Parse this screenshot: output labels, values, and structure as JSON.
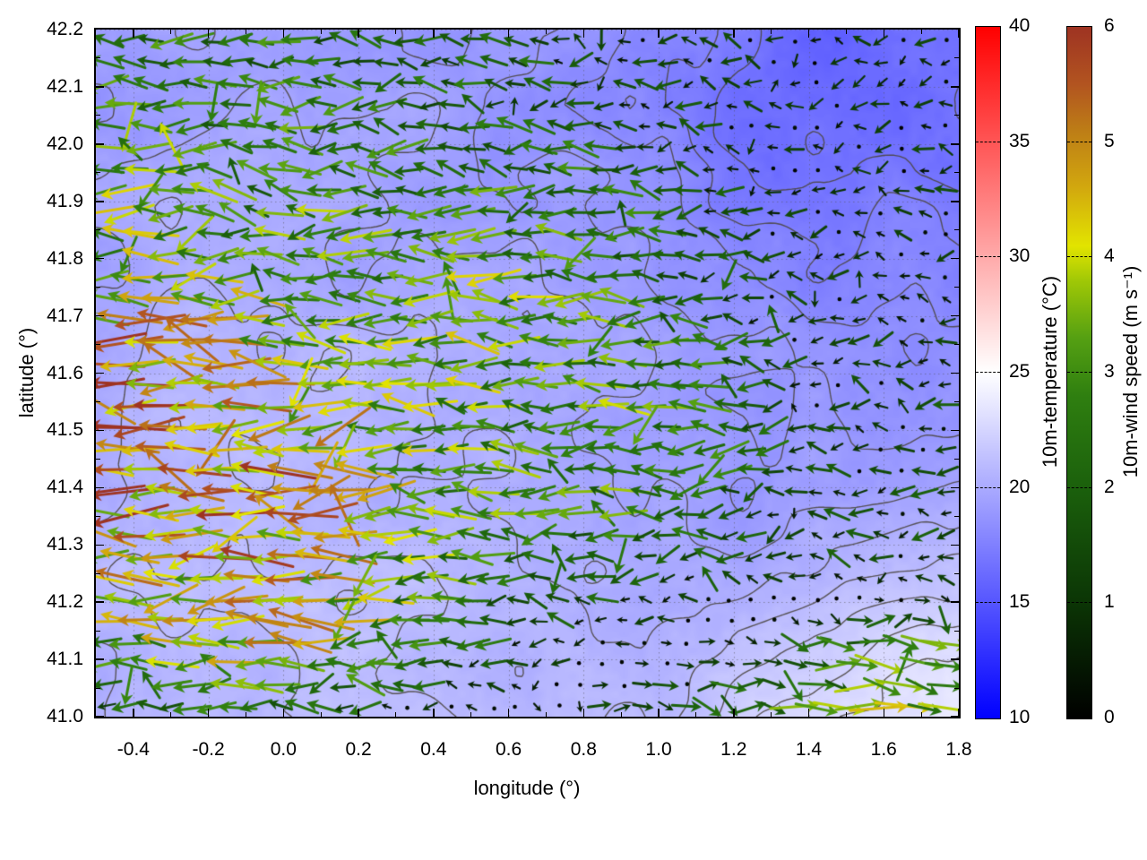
{
  "chart_data": {
    "type": "heatmap+vector-field",
    "title": "",
    "x_axis": {
      "label": "longitude (°)",
      "min": -0.5,
      "max": 1.8,
      "major_ticks": [
        -0.4,
        -0.2,
        0.0,
        0.2,
        0.4,
        0.6,
        0.8,
        1.0,
        1.2,
        1.4,
        1.6,
        1.8
      ],
      "tick_labels": [
        "-0.4",
        "-0.2",
        "0.0",
        "0.2",
        "0.4",
        "0.6",
        "0.8",
        "1.0",
        "1.2",
        "1.4",
        "1.6",
        "1.8"
      ],
      "minor_tick_step": 0.1
    },
    "y_axis": {
      "label": "latitude (°)",
      "min": 41.0,
      "max": 42.2,
      "major_ticks": [
        41.0,
        41.1,
        41.2,
        41.3,
        41.4,
        41.5,
        41.6,
        41.7,
        41.8,
        41.9,
        42.0,
        42.1,
        42.2
      ],
      "tick_labels": [
        "41.0",
        "41.1",
        "41.2",
        "41.3",
        "41.4",
        "41.5",
        "41.6",
        "41.7",
        "41.8",
        "41.9",
        "42.0",
        "42.1",
        "42.2"
      ],
      "minor_tick_step": 0.05
    },
    "grid": "dotted at major ticks",
    "colorbars": [
      {
        "id": "temperature",
        "label": "10m-temperature (°C)",
        "min": 10,
        "max": 40,
        "ticks": [
          10,
          15,
          20,
          25,
          30,
          35,
          40
        ],
        "tick_labels": [
          "10",
          "15",
          "20",
          "25",
          "30",
          "35",
          "40"
        ],
        "gradient_stops": [
          [
            10,
            "#0000ff"
          ],
          [
            25,
            "#ffffff"
          ],
          [
            40,
            "#ff0000"
          ]
        ]
      },
      {
        "id": "wind-speed",
        "label": "10m-wind speed (m s⁻¹)",
        "min": 0,
        "max": 6,
        "ticks": [
          0,
          1,
          2,
          3,
          4,
          5,
          6
        ],
        "tick_labels": [
          "0",
          "1",
          "2",
          "3",
          "4",
          "5",
          "6"
        ],
        "gradient_stops": [
          [
            0,
            "#000000"
          ],
          [
            1,
            "#0b3505"
          ],
          [
            2,
            "#1b600c"
          ],
          [
            2.8,
            "#2f7f10"
          ],
          [
            3.3,
            "#55a012"
          ],
          [
            3.8,
            "#a0c806"
          ],
          [
            4.1,
            "#e2e400"
          ],
          [
            4.6,
            "#d2a80e"
          ],
          [
            5.1,
            "#bd7d16"
          ],
          [
            5.5,
            "#b25420"
          ],
          [
            6,
            "#9e3322"
          ]
        ]
      }
    ],
    "temperature_field": {
      "units": "°C",
      "note": "coarse grid, rows span lat 42.2(top) to 41.0(bottom), cols span lon -0.5 to 1.8",
      "values": [
        [
          19.0,
          19.2,
          19.4,
          19.2,
          19.0,
          18.8,
          18.4,
          17.6,
          16.8,
          16.3,
          16.2,
          16.5
        ],
        [
          19.2,
          19.4,
          19.6,
          19.4,
          19.2,
          19.0,
          18.3,
          17.6,
          16.9,
          16.4,
          16.2,
          16.4
        ],
        [
          19.5,
          19.8,
          20.0,
          19.8,
          19.5,
          19.2,
          18.8,
          18.2,
          17.5,
          17.0,
          16.8,
          17.0
        ],
        [
          19.8,
          20.0,
          20.2,
          20.0,
          19.8,
          19.5,
          19.2,
          18.7,
          18.1,
          17.7,
          17.5,
          17.7
        ],
        [
          20.0,
          20.3,
          20.5,
          20.3,
          20.0,
          19.8,
          19.5,
          19.1,
          18.7,
          18.3,
          18.1,
          18.3
        ],
        [
          20.2,
          20.5,
          20.7,
          20.5,
          20.2,
          20.0,
          19.8,
          19.4,
          19.0,
          18.7,
          18.5,
          18.7
        ],
        [
          20.3,
          20.6,
          21.0,
          20.8,
          20.5,
          20.2,
          20.0,
          19.8,
          19.4,
          19.1,
          19.0,
          19.2
        ],
        [
          20.5,
          20.8,
          21.0,
          21.0,
          20.8,
          20.5,
          20.2,
          20.0,
          19.8,
          20.0,
          20.4,
          20.9
        ],
        [
          20.5,
          20.8,
          21.0,
          21.0,
          20.8,
          20.6,
          20.5,
          20.5,
          21.0,
          21.7,
          22.4,
          22.9
        ],
        [
          20.5,
          20.8,
          21.0,
          21.0,
          21.0,
          20.8,
          20.8,
          21.2,
          22.0,
          22.9,
          23.4,
          23.8
        ]
      ]
    },
    "wind_field": {
      "units": "m/s",
      "note": "u=eastward, v=northward; coarse grid same span as temperature grid; arrows mostly blow westward, eastward in SE corner",
      "arrow_grid_spacing_px": 24,
      "u": [
        [
          -2.2,
          -2.6,
          -2.4,
          -2.2,
          -2.0,
          -1.8,
          -1.5,
          -1.2,
          -0.9,
          -0.7,
          -1.0,
          -1.6
        ],
        [
          -2.8,
          -3.0,
          -2.6,
          -2.4,
          -2.2,
          -2.0,
          -1.8,
          -1.4,
          -1.0,
          -0.6,
          -0.7,
          -1.2
        ],
        [
          -3.4,
          -3.0,
          -2.8,
          -2.7,
          -2.5,
          -2.5,
          -2.7,
          -2.1,
          -1.4,
          -0.8,
          -0.6,
          -1.0
        ],
        [
          -3.8,
          -3.4,
          -3.0,
          -3.2,
          -3.0,
          -3.1,
          -2.9,
          -2.4,
          -1.5,
          -1.0,
          -0.8,
          -1.0
        ],
        [
          -4.8,
          -4.4,
          -3.8,
          -3.4,
          -3.2,
          -3.4,
          -3.1,
          -2.7,
          -2.0,
          -1.2,
          -1.0,
          -1.2
        ],
        [
          -5.4,
          -5.0,
          -4.4,
          -3.9,
          -3.4,
          -3.1,
          -3.0,
          -3.1,
          -2.4,
          -1.5,
          -1.0,
          -1.4
        ],
        [
          -5.2,
          -4.8,
          -4.9,
          -4.4,
          -3.4,
          -3.0,
          -2.7,
          -2.9,
          -2.2,
          -1.5,
          -1.2,
          -1.7
        ],
        [
          -4.4,
          -4.2,
          -4.7,
          -4.4,
          -3.2,
          -2.7,
          -2.4,
          -2.1,
          -1.7,
          -1.2,
          -1.5,
          -1.9
        ],
        [
          -3.4,
          -3.8,
          -4.1,
          -3.8,
          -2.8,
          -2.0,
          -1.2,
          -0.3,
          0.8,
          1.8,
          2.5,
          3.0
        ],
        [
          -1.5,
          -2.0,
          -2.5,
          -2.0,
          -1.2,
          -0.2,
          0.8,
          1.8,
          2.4,
          3.0,
          3.4,
          3.6
        ]
      ],
      "v": [
        [
          0.2,
          0.0,
          -0.3,
          0.0,
          0.2,
          0.3,
          0.0,
          -0.2,
          0.0,
          0.2,
          0.0,
          -0.2
        ],
        [
          0.0,
          0.2,
          0.0,
          -0.2,
          0.3,
          0.0,
          -0.3,
          0.0,
          0.2,
          0.0,
          -0.2,
          0.0
        ],
        [
          -0.2,
          0.0,
          0.3,
          0.0,
          0.0,
          -0.3,
          0.2,
          0.3,
          0.0,
          -0.2,
          0.0,
          0.2
        ],
        [
          0.0,
          0.3,
          0.0,
          0.2,
          -0.2,
          0.0,
          0.4,
          0.0,
          -0.3,
          0.0,
          0.2,
          0.0
        ],
        [
          0.2,
          0.0,
          -0.2,
          0.3,
          0.0,
          0.3,
          0.0,
          -0.2,
          0.0,
          0.3,
          0.0,
          -0.2
        ],
        [
          0.0,
          -0.3,
          0.0,
          0.0,
          0.4,
          0.0,
          -0.3,
          0.2,
          0.0,
          -0.2,
          0.3,
          0.0
        ],
        [
          -0.2,
          0.0,
          0.3,
          -0.2,
          0.0,
          0.3,
          0.0,
          0.0,
          -0.3,
          0.0,
          0.0,
          0.2
        ],
        [
          0.0,
          0.2,
          0.0,
          0.0,
          -0.3,
          0.0,
          0.2,
          -0.2,
          0.0,
          0.3,
          -0.2,
          0.0
        ],
        [
          0.2,
          0.0,
          -0.2,
          0.3,
          0.0,
          -0.2,
          0.0,
          0.2,
          -0.3,
          -0.4,
          -0.3,
          -0.4
        ],
        [
          0.0,
          -0.2,
          0.0,
          0.0,
          0.2,
          0.0,
          -0.2,
          0.0,
          -0.3,
          -0.4,
          -0.5,
          -0.4
        ]
      ]
    },
    "contours": {
      "color": "#4d4742",
      "levels_degC": [
        16.8,
        17.5,
        18.2,
        18.9,
        19.6,
        20.3,
        21.0,
        21.7,
        22.4,
        23.1
      ]
    },
    "style": {
      "background": "#ffffff",
      "grid_dot_color": "rgba(80,80,80,0.5)"
    }
  }
}
